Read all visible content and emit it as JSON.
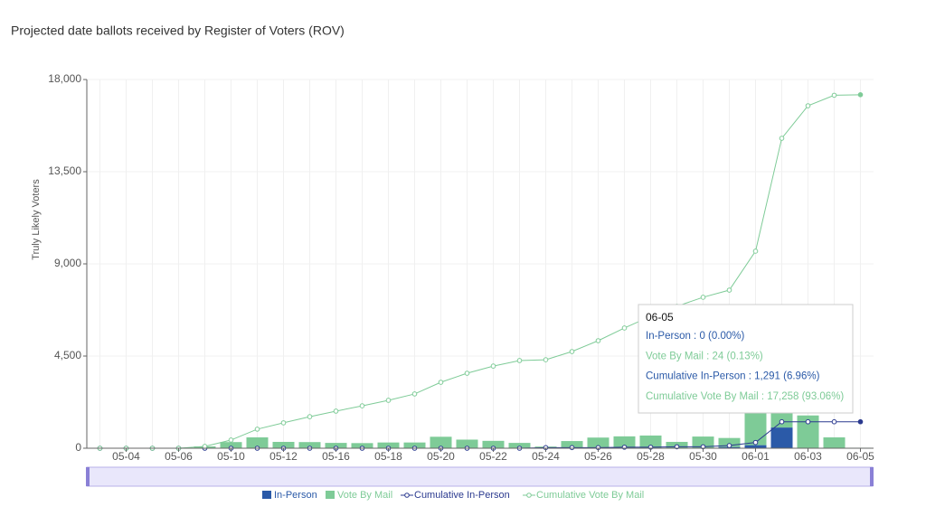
{
  "chart_data": {
    "type": "bar",
    "title": "Projected date ballots received by Register of Voters (ROV)",
    "y_label": "Truly Likely Voters",
    "categories": [
      null,
      "05-04",
      null,
      "05-06",
      null,
      "05-10",
      null,
      "05-12",
      null,
      "05-16",
      null,
      "05-18",
      null,
      "05-20",
      null,
      "05-22",
      null,
      "05-24",
      null,
      "05-26",
      null,
      "05-28",
      null,
      "05-30",
      null,
      "06-01",
      null,
      "06-03",
      null,
      "06-05"
    ],
    "series": [
      {
        "name": "In-Person",
        "type": "bar",
        "color": "#2b5aa8",
        "values": [
          0,
          0,
          0,
          0,
          0,
          0,
          0,
          0,
          0,
          0,
          0,
          0,
          0,
          0,
          0,
          0,
          0,
          30,
          0,
          0,
          20,
          0,
          20,
          0,
          60,
          150,
          1011,
          0,
          0,
          0
        ]
      },
      {
        "name": "Vote By Mail",
        "type": "bar",
        "color": "#7ecb97",
        "values": [
          0,
          0,
          0,
          0,
          90,
          300,
          530,
          310,
          300,
          260,
          250,
          280,
          280,
          560,
          420,
          360,
          260,
          50,
          350,
          520,
          560,
          620,
          290,
          570,
          440,
          1600,
          700,
          1600,
          530,
          24
        ]
      },
      {
        "name": "Cumulative In-Person",
        "type": "line",
        "color": "#2b3a8f",
        "values": [
          0,
          0,
          0,
          0,
          0,
          0,
          0,
          0,
          0,
          0,
          0,
          0,
          0,
          0,
          0,
          0,
          0,
          30,
          30,
          30,
          50,
          50,
          70,
          70,
          130,
          280,
          1291,
          1291,
          1291,
          1291
        ]
      },
      {
        "name": "Cumulative Vote By Mail",
        "type": "line",
        "color": "#7ecb97",
        "values": [
          0,
          0,
          0,
          0,
          90,
          400,
          930,
          1240,
          1540,
          1810,
          2070,
          2340,
          2650,
          3220,
          3660,
          4010,
          4280,
          4320,
          4720,
          5250,
          5870,
          6440,
          6930,
          7370,
          7720,
          9620,
          15130,
          16720,
          17234,
          17258
        ]
      }
    ],
    "ylim": [
      0,
      18000
    ],
    "yticks": [
      0,
      {
        "value": 4500,
        "label": "4,500"
      },
      {
        "value": 9000,
        "label": "9,000"
      },
      {
        "value": 13500,
        "label": "13,500"
      },
      {
        "value": 18000,
        "label": "18,000"
      }
    ],
    "grid": true,
    "legend": "bottom",
    "tooltip": {
      "lines": [
        "In-Person : 0 (0.00%)",
        "Vote By Mail : 24 (0.13%)",
        "Cumulative In-Person : 1,291 (6.96%)",
        "Cumulative Vote By Mail : 17,258 (93.06%)"
      ]
    }
  }
}
